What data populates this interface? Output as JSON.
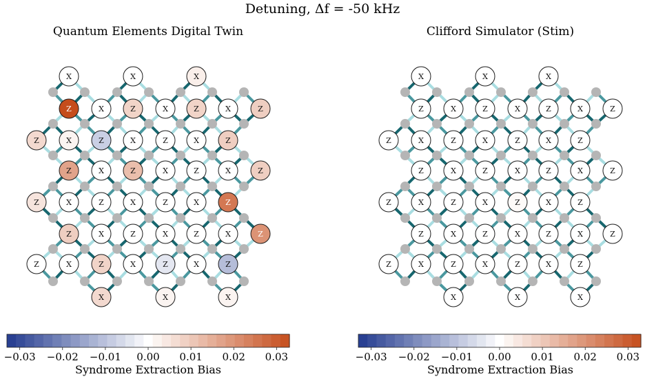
{
  "title": "Detuning, Δf = -50 kHz",
  "palette": {
    "edge_dark": "#17676f",
    "edge_mid": "#4a989f",
    "edge_light": "#a9dde1",
    "data_qubit": "#b5b5b5",
    "negative_end": "#223a8e",
    "neutral": "#ffffff",
    "positive_end": "#c54d1c"
  },
  "panels": [
    {
      "title": "Quantum Elements Digital Twin",
      "colorbar": {
        "label": "Syndrome Extraction Bias",
        "ticks": [
          "−0.03",
          "−0.02",
          "−0.01",
          "0.00",
          "0.01",
          "0.02",
          "0.03"
        ],
        "range": [
          -0.033,
          0.033
        ]
      },
      "rows": [
        {
          "stabilizers": [
            {
              "type": "X",
              "bias": 0
            },
            {
              "type": "X",
              "bias": 0
            },
            {
              "type": "X",
              "bias": 0.003
            }
          ]
        },
        {
          "stabilizers": [
            {
              "type": "Z",
              "bias": 0.033
            },
            {
              "type": "X",
              "bias": 0
            },
            {
              "type": "Z",
              "bias": 0.008
            },
            {
              "type": "X",
              "bias": 0
            },
            {
              "type": "Z",
              "bias": 0.008
            },
            {
              "type": "X",
              "bias": 0
            },
            {
              "type": "Z",
              "bias": 0.009
            }
          ]
        },
        {
          "stabilizers": [
            {
              "type": "Z",
              "bias": 0.007
            },
            {
              "type": "X",
              "bias": 0.002
            },
            {
              "type": "Z",
              "bias": -0.008
            },
            {
              "type": "X",
              "bias": 0
            },
            {
              "type": "Z",
              "bias": 0
            },
            {
              "type": "X",
              "bias": 0
            },
            {
              "type": "Z",
              "bias": 0.009
            }
          ]
        },
        {
          "stabilizers": [
            {
              "type": "Z",
              "bias": 0.017
            },
            {
              "type": "X",
              "bias": 0
            },
            {
              "type": "Z",
              "bias": 0.012
            },
            {
              "type": "X",
              "bias": 0
            },
            {
              "type": "Z",
              "bias": 0
            },
            {
              "type": "X",
              "bias": 0
            },
            {
              "type": "Z",
              "bias": 0.009
            }
          ]
        },
        {
          "stabilizers": [
            {
              "type": "Z",
              "bias": 0.005
            },
            {
              "type": "X",
              "bias": 0
            },
            {
              "type": "Z",
              "bias": 0
            },
            {
              "type": "X",
              "bias": 0
            },
            {
              "type": "Z",
              "bias": 0
            },
            {
              "type": "X",
              "bias": 0
            },
            {
              "type": "Z",
              "bias": 0.025
            }
          ]
        },
        {
          "stabilizers": [
            {
              "type": "Z",
              "bias": 0.009
            },
            {
              "type": "X",
              "bias": 0
            },
            {
              "type": "Z",
              "bias": 0
            },
            {
              "type": "X",
              "bias": 0
            },
            {
              "type": "Z",
              "bias": 0
            },
            {
              "type": "X",
              "bias": 0
            },
            {
              "type": "Z",
              "bias": 0.02
            }
          ]
        },
        {
          "stabilizers": [
            {
              "type": "Z",
              "bias": 0
            },
            {
              "type": "X",
              "bias": 0
            },
            {
              "type": "Z",
              "bias": 0.008
            },
            {
              "type": "X",
              "bias": 0
            },
            {
              "type": "Z",
              "bias": -0.004
            },
            {
              "type": "X",
              "bias": 0
            },
            {
              "type": "Z",
              "bias": -0.011
            }
          ]
        },
        {
          "stabilizers": [
            {
              "type": "X",
              "bias": 0.007
            },
            {
              "type": "X",
              "bias": 0.002
            },
            {
              "type": "X",
              "bias": 0.002
            }
          ]
        }
      ]
    },
    {
      "title": "Clifford Simulator (Stim)",
      "colorbar": {
        "label": "Syndrome Extraction Bias",
        "ticks": [
          "−0.03",
          "−0.02",
          "−0.01",
          "0.00",
          "0.01",
          "0.02",
          "0.03"
        ],
        "range": [
          -0.033,
          0.033
        ]
      },
      "rows": [
        {
          "stabilizers": [
            {
              "type": "X",
              "bias": 0
            },
            {
              "type": "X",
              "bias": 0
            },
            {
              "type": "X",
              "bias": 0
            }
          ]
        },
        {
          "stabilizers": [
            {
              "type": "Z",
              "bias": 0
            },
            {
              "type": "X",
              "bias": 0
            },
            {
              "type": "Z",
              "bias": 0
            },
            {
              "type": "X",
              "bias": 0
            },
            {
              "type": "Z",
              "bias": 0
            },
            {
              "type": "X",
              "bias": 0
            },
            {
              "type": "Z",
              "bias": 0
            }
          ]
        },
        {
          "stabilizers": [
            {
              "type": "Z",
              "bias": 0
            },
            {
              "type": "X",
              "bias": 0
            },
            {
              "type": "Z",
              "bias": 0
            },
            {
              "type": "X",
              "bias": 0
            },
            {
              "type": "Z",
              "bias": 0
            },
            {
              "type": "X",
              "bias": 0
            },
            {
              "type": "Z",
              "bias": 0
            }
          ]
        },
        {
          "stabilizers": [
            {
              "type": "Z",
              "bias": 0
            },
            {
              "type": "X",
              "bias": 0
            },
            {
              "type": "Z",
              "bias": 0
            },
            {
              "type": "X",
              "bias": 0
            },
            {
              "type": "Z",
              "bias": 0
            },
            {
              "type": "X",
              "bias": 0
            },
            {
              "type": "Z",
              "bias": 0
            }
          ]
        },
        {
          "stabilizers": [
            {
              "type": "Z",
              "bias": 0
            },
            {
              "type": "X",
              "bias": 0
            },
            {
              "type": "Z",
              "bias": 0
            },
            {
              "type": "X",
              "bias": 0
            },
            {
              "type": "Z",
              "bias": 0.001
            },
            {
              "type": "X",
              "bias": 0
            },
            {
              "type": "Z",
              "bias": 0
            }
          ]
        },
        {
          "stabilizers": [
            {
              "type": "Z",
              "bias": 0
            },
            {
              "type": "X",
              "bias": 0
            },
            {
              "type": "Z",
              "bias": 0
            },
            {
              "type": "X",
              "bias": 0
            },
            {
              "type": "Z",
              "bias": 0
            },
            {
              "type": "X",
              "bias": 0
            },
            {
              "type": "Z",
              "bias": 0
            }
          ]
        },
        {
          "stabilizers": [
            {
              "type": "Z",
              "bias": 0
            },
            {
              "type": "X",
              "bias": 0
            },
            {
              "type": "Z",
              "bias": 0
            },
            {
              "type": "X",
              "bias": 0
            },
            {
              "type": "Z",
              "bias": 0
            },
            {
              "type": "X",
              "bias": 0
            },
            {
              "type": "Z",
              "bias": 0
            }
          ]
        },
        {
          "stabilizers": [
            {
              "type": "X",
              "bias": 0
            },
            {
              "type": "X",
              "bias": 0
            },
            {
              "type": "X",
              "bias": 0
            }
          ]
        }
      ]
    }
  ]
}
